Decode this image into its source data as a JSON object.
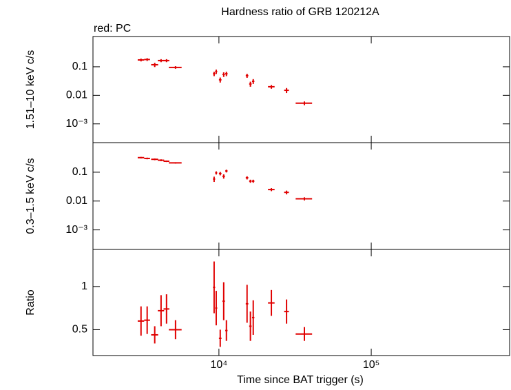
{
  "chart_data": [
    {
      "type": "scatter",
      "title": "Hardness ratio of GRB 120212A",
      "annotation": "red: PC",
      "ylabel": "1.51–10 keV c/s",
      "ylog": true,
      "xlog": true,
      "color": "#e00000",
      "xlim": [
        1490,
        810000
      ],
      "ylim": [
        0.00022,
        1.15
      ],
      "yticks": [
        {
          "value": 0.001,
          "label": "10⁻³"
        },
        0.01,
        0.1
      ],
      "x": [
        3080,
        3380,
        3790,
        4170,
        4530,
        5190,
        9300,
        9600,
        10200,
        10750,
        11200,
        15300,
        16100,
        16800,
        22100,
        27800,
        36400
      ],
      "xerr": [
        150,
        150,
        200,
        200,
        200,
        500,
        150,
        150,
        200,
        200,
        200,
        300,
        300,
        300,
        1100,
        1000,
        4500
      ],
      "values": [
        0.174,
        0.18,
        0.118,
        0.165,
        0.165,
        0.095,
        0.057,
        0.068,
        0.035,
        0.054,
        0.057,
        0.049,
        0.025,
        0.031,
        0.02,
        0.015,
        0.0053
      ],
      "yerr": [
        0.02,
        0.02,
        0.02,
        0.02,
        0.02,
        0.01,
        0.01,
        0.012,
        0.007,
        0.01,
        0.01,
        0.008,
        0.005,
        0.006,
        0.003,
        0.003,
        0.0008
      ]
    },
    {
      "type": "scatter",
      "ylabel": "0.3–1.5 keV c/s",
      "ylog": true,
      "xlog": true,
      "color": "#e00000",
      "xlim": [
        1490,
        810000
      ],
      "ylim": [
        0.00021,
        1.06
      ],
      "yticks": [
        {
          "value": 0.001,
          "label": "10⁻³"
        },
        0.01,
        0.1
      ],
      "x": [
        3080,
        3380,
        3790,
        4170,
        4530,
        5190,
        9300,
        9600,
        10200,
        10750,
        11200,
        15300,
        16100,
        16800,
        22100,
        27800,
        36400
      ],
      "xerr": [
        150,
        150,
        200,
        200,
        200,
        500,
        150,
        150,
        200,
        200,
        200,
        300,
        300,
        300,
        1100,
        1000,
        4500
      ],
      "values": [
        0.32,
        0.3,
        0.28,
        0.26,
        0.24,
        0.21,
        0.058,
        0.095,
        0.09,
        0.072,
        0.11,
        0.064,
        0.049,
        0.049,
        0.025,
        0.02,
        0.012
      ],
      "yerr": [
        0.02,
        0.02,
        0.02,
        0.02,
        0.015,
        0.012,
        0.012,
        0.012,
        0.012,
        0.012,
        0.012,
        0.008,
        0.006,
        0.006,
        0.003,
        0.003,
        0.0015
      ]
    },
    {
      "type": "scatter",
      "ylabel": "Ratio",
      "xlabel": "Time since BAT trigger (s)",
      "ylog": false,
      "xlog": true,
      "color": "#e00000",
      "xlim": [
        1490,
        810000
      ],
      "ylim": [
        0.2,
        1.43
      ],
      "yticks": [
        0.5,
        1
      ],
      "xticks": [
        {
          "value": 10000,
          "label": "10⁴"
        },
        {
          "value": 100000,
          "label": "10⁵"
        }
      ],
      "x": [
        3080,
        3380,
        3790,
        4170,
        4530,
        5190,
        9300,
        9600,
        10200,
        10750,
        11200,
        15300,
        16100,
        16800,
        22100,
        27800,
        36400
      ],
      "xerr": [
        150,
        150,
        200,
        200,
        200,
        500,
        150,
        150,
        200,
        200,
        200,
        300,
        300,
        300,
        1100,
        1000,
        4500
      ],
      "values": [
        0.6,
        0.61,
        0.44,
        0.72,
        0.74,
        0.5,
        0.99,
        0.75,
        0.4,
        0.83,
        0.49,
        0.8,
        0.54,
        0.64,
        0.81,
        0.71,
        0.45
      ],
      "yerr": [
        0.17,
        0.16,
        0.1,
        0.18,
        0.17,
        0.11,
        0.3,
        0.2,
        0.1,
        0.22,
        0.12,
        0.22,
        0.17,
        0.2,
        0.15,
        0.14,
        0.08
      ]
    }
  ]
}
